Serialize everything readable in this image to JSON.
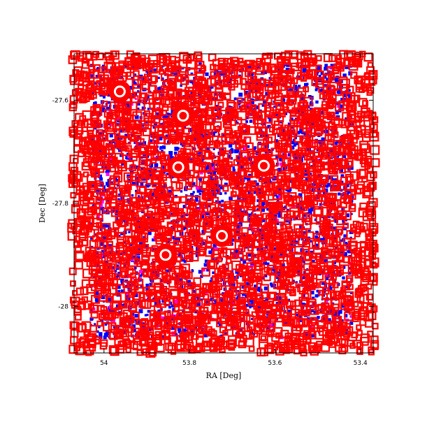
{
  "chart_data": {
    "type": "scatter",
    "xlabel": "RA [Deg]",
    "ylabel": "Dec [Deg]",
    "xlim": [
      54.07,
      53.37
    ],
    "ylim": [
      -28.09,
      -27.51
    ],
    "x_ticks": [
      {
        "value": 54.0,
        "label": "54"
      },
      {
        "value": 53.8,
        "label": "53.8"
      },
      {
        "value": 53.6,
        "label": "53.6"
      },
      {
        "value": 53.4,
        "label": "53.4"
      }
    ],
    "y_ticks": [
      {
        "value": -27.6,
        "label": "-27.6"
      },
      {
        "value": -27.8,
        "label": "-27.8"
      },
      {
        "value": -28.0,
        "label": "-28"
      }
    ],
    "grid": false,
    "legend": "none",
    "series": [
      {
        "color": "#0000ff",
        "marker": "square",
        "region": {
          "ra": [
            54.03,
            53.42
          ],
          "dec": [
            -28.06,
            -27.53
          ]
        },
        "count": 2600,
        "seed": 11
      },
      {
        "color": "#ff00ff",
        "marker": "square",
        "region": {
          "ra": [
            54.03,
            53.42
          ],
          "dec": [
            -28.06,
            -27.53
          ]
        },
        "count": 140,
        "seed": 23
      },
      {
        "color": "#ff0000",
        "marker": "open-square",
        "region": {
          "ra": [
            54.075,
            53.365
          ],
          "dec": [
            -28.09,
            -27.51
          ]
        },
        "count": 3000,
        "seed": 37
      }
    ],
    "bright_sources": [
      {
        "ra": 53.963,
        "dec": -27.583
      },
      {
        "ra": 53.815,
        "dec": -27.63
      },
      {
        "ra": 53.826,
        "dec": -27.73
      },
      {
        "ra": 53.626,
        "dec": -27.727
      },
      {
        "ra": 53.724,
        "dec": -27.863
      },
      {
        "ra": 53.856,
        "dec": -27.9
      }
    ]
  }
}
